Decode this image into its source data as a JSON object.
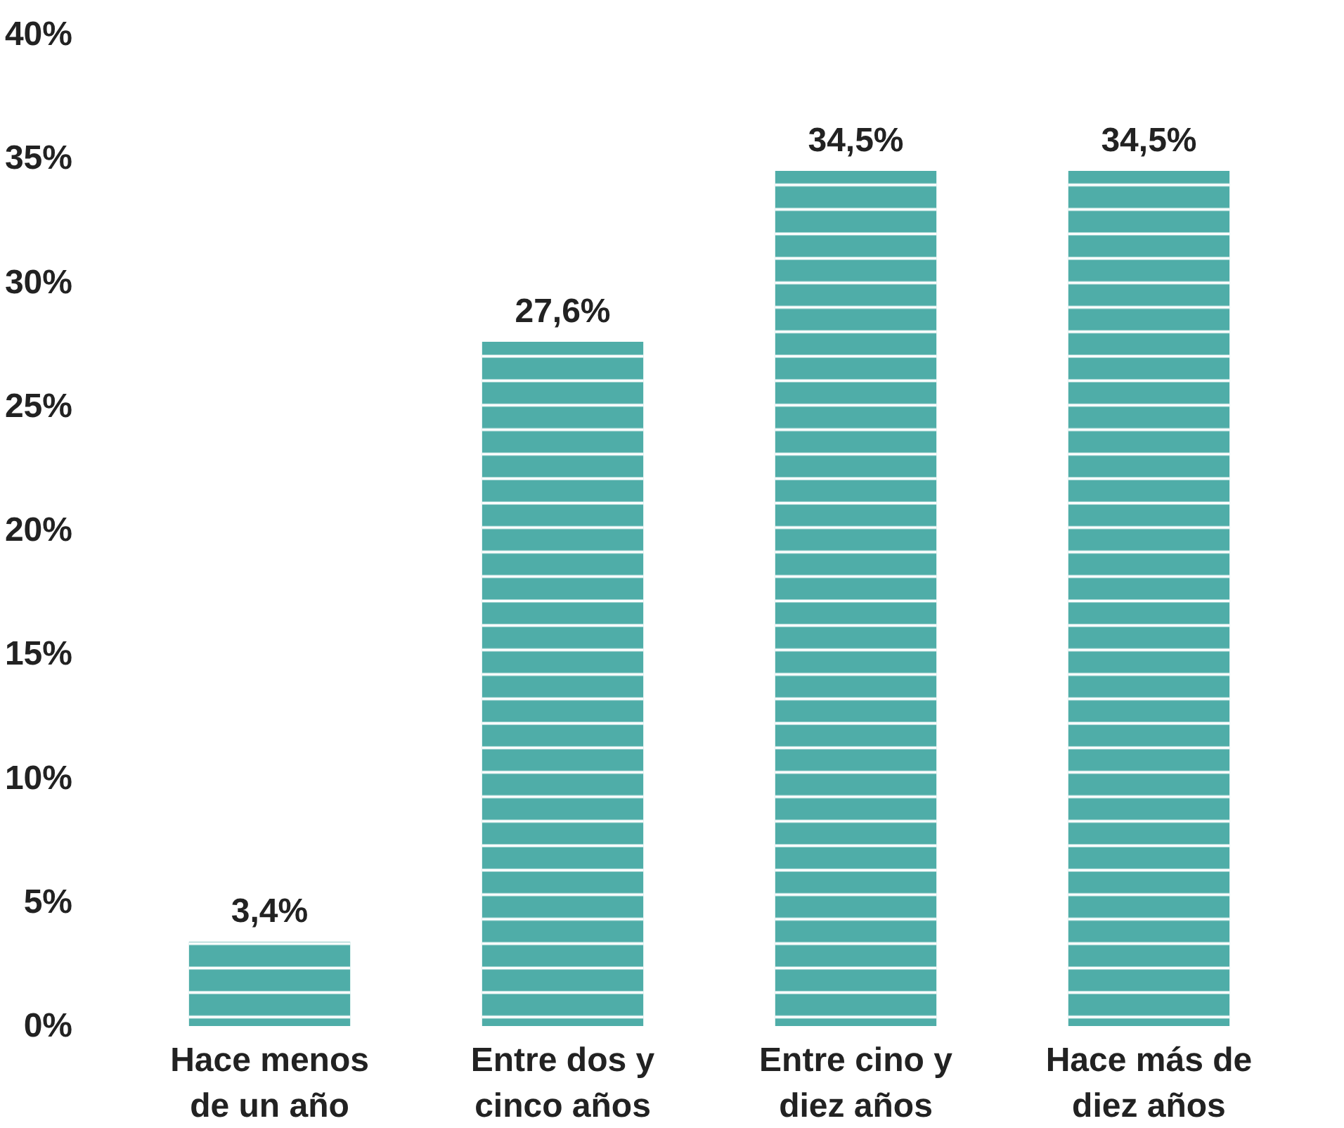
{
  "chart_data": {
    "type": "bar",
    "categories": [
      "Hace menos de un año",
      "Entre dos y cinco años",
      "Entre cino y diez años",
      "Hace más de diez años"
    ],
    "values": [
      3.4,
      27.6,
      34.5,
      34.5
    ],
    "value_labels": [
      "3,4%",
      "27,6%",
      "34,5%",
      "34,5%"
    ],
    "color": "#4fada8",
    "ylim": [
      0,
      40
    ],
    "yticks": [
      {
        "value": 0,
        "label": "0%"
      },
      {
        "value": 5,
        "label": "5%"
      },
      {
        "value": 10,
        "label": "10%"
      },
      {
        "value": 15,
        "label": "15%"
      },
      {
        "value": 20,
        "label": "20%"
      },
      {
        "value": 25,
        "label": "25%"
      },
      {
        "value": 30,
        "label": "30%"
      },
      {
        "value": 35,
        "label": "35%"
      },
      {
        "value": 40,
        "label": "40%"
      }
    ],
    "grid": false
  }
}
